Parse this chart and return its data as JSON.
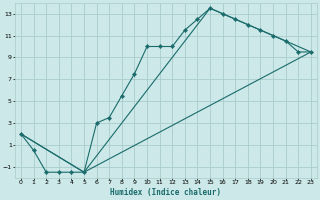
{
  "xlabel": "Humidex (Indice chaleur)",
  "bg_color": "#cce8e8",
  "grid_color": "#aacccc",
  "line_color": "#1a6b6b",
  "xlim": [
    -0.5,
    23.5
  ],
  "ylim": [
    -2,
    14
  ],
  "xticks": [
    0,
    1,
    2,
    3,
    4,
    5,
    6,
    7,
    8,
    9,
    10,
    11,
    12,
    13,
    14,
    15,
    16,
    17,
    18,
    19,
    20,
    21,
    22,
    23
  ],
  "yticks": [
    -1,
    1,
    3,
    5,
    7,
    9,
    11,
    13
  ],
  "series1_x": [
    0,
    1,
    2,
    3,
    4,
    5,
    6,
    7,
    8,
    9,
    10,
    11,
    12,
    13,
    14,
    15,
    16,
    17,
    18,
    19,
    20,
    21,
    22,
    23
  ],
  "series1_y": [
    2,
    0.5,
    -1.5,
    -1.5,
    -1.5,
    -1.5,
    3,
    3.5,
    5.5,
    7.5,
    10,
    10,
    10,
    11.5,
    12.5,
    13.5,
    13,
    12.5,
    12,
    11.5,
    11,
    10.5,
    9.5,
    9.5
  ],
  "series2_x": [
    0,
    5,
    23
  ],
  "series2_y": [
    2,
    -1.5,
    9.5
  ],
  "series3_x": [
    0,
    5,
    15,
    23
  ],
  "series3_y": [
    2,
    -1.5,
    13.5,
    9.5
  ]
}
